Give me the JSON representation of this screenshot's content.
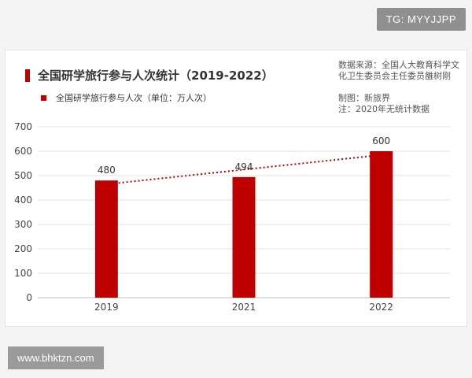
{
  "watermark_top": "TG: MYYJJPP",
  "watermark_bottom": "www.bhktzn.com",
  "source_lines": [
    "数据来源：全国人大教育科学文",
    "化卫生委员会主任委员雒树刚",
    "制图：新旅界",
    "注：2020年无统计数据"
  ],
  "colors": {
    "bar": "#c00000",
    "trend": "#c00000"
  },
  "chart_data": {
    "type": "bar",
    "title": "全国研学旅行参与人次统计（2019-2022）",
    "categories": [
      "2019",
      "2021",
      "2022"
    ],
    "series": [
      {
        "name": "全国研学旅行参与人次（单位：万人次）",
        "values": [
          480,
          494,
          600
        ]
      }
    ],
    "ylim": [
      0,
      700
    ],
    "yticks": [
      0,
      100,
      200,
      300,
      400,
      500,
      600,
      700
    ],
    "xlabel": "",
    "ylabel": "",
    "grid": true,
    "legend": "top-left",
    "trendline": {
      "style": "dotted",
      "series": 0
    }
  }
}
